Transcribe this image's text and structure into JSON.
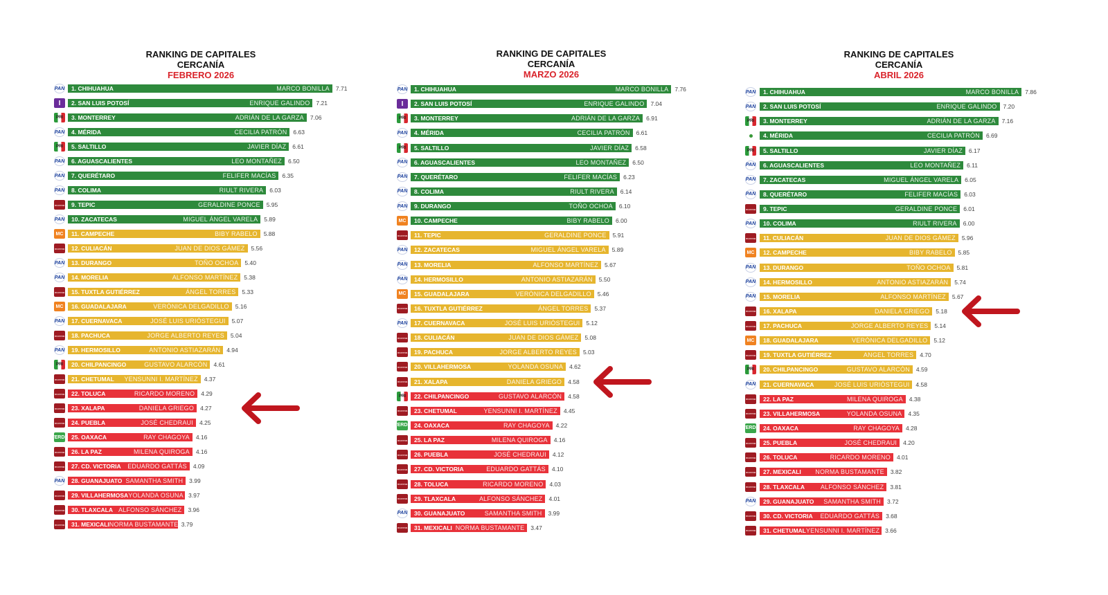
{
  "colors": {
    "green": "#2e8a3c",
    "yellow": "#e6b52e",
    "red": "#e8323a",
    "arrow": "#c0161e"
  },
  "chart_data": [
    {
      "type": "bar",
      "orientation": "horizontal",
      "title": "RANKING DE CAPITALES",
      "subtitle": "CERCANÍA",
      "period": "FEBRERO 2026",
      "xlim": [
        1.0,
        7.8
      ],
      "highlight_rank": 23,
      "rows": [
        [
          1,
          "CHIHUAHUA",
          "MARCO BONILLA",
          7.71,
          "pan"
        ],
        [
          2,
          "SAN LUIS POTOSÍ",
          "ENRIQUE GALINDO",
          7.21,
          "ind"
        ],
        [
          3,
          "MONTERREY",
          "ADRIÁN DE LA GARZA",
          7.06,
          "pri"
        ],
        [
          4,
          "MÉRIDA",
          "CECILIA PATRÓN",
          6.63,
          "pan"
        ],
        [
          5,
          "SALTILLO",
          "JAVIER DÍAZ",
          6.61,
          "pri"
        ],
        [
          6,
          "AGUASCALIENTES",
          "LEO MONTAÑEZ",
          6.5,
          "pan"
        ],
        [
          7,
          "QUERÉTARO",
          "FELIFER MACÍAS",
          6.35,
          "pan"
        ],
        [
          8,
          "COLIMA",
          "RIULT RIVERA",
          6.03,
          "pan"
        ],
        [
          9,
          "TEPIC",
          "GERALDINE PONCE",
          5.95,
          "morena"
        ],
        [
          10,
          "ZACATECAS",
          "MIGUEL ÁNGEL VARELA",
          5.89,
          "pan"
        ],
        [
          11,
          "CAMPECHE",
          "BIBY RABELO",
          5.88,
          "mc"
        ],
        [
          12,
          "CULIACÁN",
          "JUAN DE DIOS GÁMEZ",
          5.56,
          "morena"
        ],
        [
          13,
          "DURANGO",
          "TOÑO OCHOA",
          5.4,
          "pan"
        ],
        [
          14,
          "MORELIA",
          "ALFONSO MARTÍNEZ",
          5.38,
          "pan"
        ],
        [
          15,
          "TUXTLA GUTIÉRREZ",
          "ÁNGEL TORRES",
          5.33,
          "morena"
        ],
        [
          16,
          "GUADALAJARA",
          "VERÓNICA DELGADILLO",
          5.16,
          "mc"
        ],
        [
          17,
          "CUERNAVACA",
          "JOSÉ LUIS URIÓSTEGUI",
          5.07,
          "pan"
        ],
        [
          18,
          "PACHUCA",
          "JORGE ALBERTO REYES",
          5.04,
          "morena"
        ],
        [
          19,
          "HERMOSILLO",
          "ANTONIO ASTIAZARÁN",
          4.94,
          "pan"
        ],
        [
          20,
          "CHILPANCINGO",
          "GUSTAVO ALARCÓN",
          4.61,
          "pri"
        ],
        [
          21,
          "CHETUMAL",
          "YENSUNNI I. MARTÍNEZ",
          4.37,
          "morena"
        ],
        [
          22,
          "TOLUCA",
          "RICARDO MORENO",
          4.29,
          "morena"
        ],
        [
          23,
          "XALAPA",
          "DANIELA GRIEGO",
          4.27,
          "morena"
        ],
        [
          24,
          "PUEBLA",
          "JOSÉ CHEDRAUI",
          4.25,
          "morena"
        ],
        [
          25,
          "OAXACA",
          "RAY CHAGOYA",
          4.16,
          "verde"
        ],
        [
          26,
          "LA PAZ",
          "MILENA QUIROGA",
          4.16,
          "morena"
        ],
        [
          27,
          "CD. VICTORIA",
          "EDUARDO GATTÁS",
          4.09,
          "morena"
        ],
        [
          28,
          "GUANAJUATO",
          "SAMANTHA SMITH",
          3.99,
          "pan"
        ],
        [
          29,
          "VILLAHERMOSA",
          "YOLANDA OSUNA",
          3.97,
          "morena"
        ],
        [
          30,
          "TLAXCALA",
          "ALFONSO SÁNCHEZ",
          3.96,
          "morena"
        ],
        [
          31,
          "MEXICALI",
          "NORMA BUSTAMANTE",
          3.79,
          "morena"
        ]
      ]
    },
    {
      "type": "bar",
      "orientation": "horizontal",
      "title": "RANKING DE CAPITALES",
      "subtitle": "CERCANÍA",
      "period": "MARZO 2026",
      "xlim": [
        0,
        8
      ],
      "highlight_rank": 21,
      "rows": [
        [
          1,
          "CHIHUAHUA",
          "MARCO BONILLA",
          7.76,
          "pan"
        ],
        [
          2,
          "SAN LUIS POTOSÍ",
          "ENRIQUE GALINDO",
          7.04,
          "ind"
        ],
        [
          3,
          "MONTERREY",
          "ADRIÁN DE LA GARZA",
          6.91,
          "pri"
        ],
        [
          4,
          "MÉRIDA",
          "CECILIA PATRÓN",
          6.61,
          "pan"
        ],
        [
          5,
          "SALTILLO",
          "JAVIER DÍAZ",
          6.58,
          "pri"
        ],
        [
          6,
          "AGUASCALIENTES",
          "LEO MONTAÑEZ",
          6.5,
          "pan"
        ],
        [
          7,
          "QUERÉTARO",
          "FELIFER MACÍAS",
          6.23,
          "pan"
        ],
        [
          8,
          "COLIMA",
          "RIULT RIVERA",
          6.14,
          "pan"
        ],
        [
          9,
          "DURANGO",
          "TOÑO OCHOA",
          6.1,
          "pan"
        ],
        [
          10,
          "CAMPECHE",
          "BIBY RABELO",
          6.0,
          "mc"
        ],
        [
          11,
          "TEPIC",
          "GERALDINE PONCE",
          5.91,
          "morena"
        ],
        [
          12,
          "ZACATECAS",
          "MIGUEL ÁNGEL VARELA",
          5.89,
          "pan"
        ],
        [
          13,
          "MORELIA",
          "ALFONSO MARTÍNEZ",
          5.67,
          "pan"
        ],
        [
          14,
          "HERMOSILLO",
          "ANTONIO ASTIAZARÁN",
          5.5,
          "pan"
        ],
        [
          15,
          "GUADALAJARA",
          "VERÓNICA DELGADILLO",
          5.46,
          "mc"
        ],
        [
          16,
          "TUXTLA GUTIÉRREZ",
          "ÁNGEL TORRES",
          5.37,
          "morena"
        ],
        [
          17,
          "CUERNAVACA",
          "JOSÉ LUIS URIÓSTEGUI",
          5.12,
          "pan"
        ],
        [
          18,
          "CULIACÁN",
          "JUAN DE DIOS GÁMEZ",
          5.08,
          "morena"
        ],
        [
          19,
          "PACHUCA",
          "JORGE ALBERTO REYES",
          5.03,
          "morena"
        ],
        [
          20,
          "VILLAHERMOSA",
          "YOLANDA OSUNA",
          4.62,
          "morena"
        ],
        [
          21,
          "XALAPA",
          "DANIELA GRIEGO",
          4.58,
          "morena"
        ],
        [
          22,
          "CHILPANCINGO",
          "GUSTAVO ALARCÓN",
          4.58,
          "pri"
        ],
        [
          23,
          "CHETUMAL",
          "YENSUNNI I. MARTÍNEZ",
          4.45,
          "morena"
        ],
        [
          24,
          "OAXACA",
          "RAY CHAGOYA",
          4.22,
          "verde"
        ],
        [
          25,
          "LA PAZ",
          "MILENA QUIROGA",
          4.16,
          "morena"
        ],
        [
          26,
          "PUEBLA",
          "JOSÉ CHEDRAUI",
          4.12,
          "morena"
        ],
        [
          27,
          "CD. VICTORIA",
          "EDUARDO GATTÁS",
          4.1,
          "morena"
        ],
        [
          28,
          "TOLUCA",
          "RICARDO MORENO",
          4.03,
          "morena"
        ],
        [
          29,
          "TLAXCALA",
          "ALFONSO SÁNCHEZ",
          4.01,
          "morena"
        ],
        [
          30,
          "GUANAJUATO",
          "SAMANTHA SMITH",
          3.99,
          "pan"
        ],
        [
          31,
          "MEXICALI",
          "NORMA BUSTAMANTE",
          3.47,
          "morena"
        ]
      ]
    },
    {
      "type": "bar",
      "orientation": "horizontal",
      "title": "RANKING DE CAPITALES",
      "subtitle": "CERCANÍA",
      "period": "ABRIL 2026",
      "xlim": [
        0,
        8
      ],
      "highlight_rank": 16,
      "rows": [
        [
          1,
          "CHIHUAHUA",
          "MARCO BONILLA",
          7.86,
          "pan"
        ],
        [
          2,
          "SAN LUIS POTOSÍ",
          "ENRIQUE GALINDO",
          7.2,
          "pan"
        ],
        [
          3,
          "MONTERREY",
          "ADRIÁN DE LA GARZA",
          7.16,
          "pri"
        ],
        [
          4,
          "MÉRIDA",
          "CECILIA PATRÓN",
          6.69,
          "dot"
        ],
        [
          5,
          "SALTILLO",
          "JAVIER DÍAZ",
          6.17,
          "pri"
        ],
        [
          6,
          "AGUASCALIENTES",
          "LEO MONTAÑEZ",
          6.11,
          "pan"
        ],
        [
          7,
          "ZACATECAS",
          "MIGUEL ÁNGEL VARELA",
          6.05,
          "pan"
        ],
        [
          8,
          "QUERÉTARO",
          "FELIFER MACÍAS",
          6.03,
          "pan"
        ],
        [
          9,
          "TEPIC",
          "GERALDINE PONCE",
          6.01,
          "morena"
        ],
        [
          10,
          "COLIMA",
          "RIULT RIVERA",
          6.0,
          "pan"
        ],
        [
          11,
          "CULIACÁN",
          "JUAN DE DIOS GÁMEZ",
          5.96,
          "morena"
        ],
        [
          12,
          "CAMPECHE",
          "BIBY RABELO",
          5.85,
          "mc"
        ],
        [
          13,
          "DURANGO",
          "TOÑO OCHOA",
          5.81,
          "pan"
        ],
        [
          14,
          "HERMOSILLO",
          "ANTONIO ASTIAZARÁN",
          5.74,
          "pan"
        ],
        [
          15,
          "MORELIA",
          "ALFONSO MARTÍNEZ",
          5.67,
          "pan"
        ],
        [
          16,
          "XALAPA",
          "DANIELA GRIEGO",
          5.18,
          "morena"
        ],
        [
          17,
          "PACHUCA",
          "JORGE ALBERTO REYES",
          5.14,
          "morena"
        ],
        [
          18,
          "GUADALAJARA",
          "VERÓNICA DELGADILLO",
          5.12,
          "mc"
        ],
        [
          19,
          "TUXTLA GUTIÉRREZ",
          "ANGEL TORRES",
          4.7,
          "morena"
        ],
        [
          20,
          "CHILPANCINGO",
          "GUSTAVO ALARCÓN",
          4.59,
          "pri"
        ],
        [
          21,
          "CUERNAVACA",
          "JOSÉ LUIS URIÓSTEGUI",
          4.58,
          "pan"
        ],
        [
          22,
          "LA PAZ",
          "MILENA QUIROGA",
          4.38,
          "morena"
        ],
        [
          23,
          "VILLAHERMOSA",
          "YOLANDA OSUNA",
          4.35,
          "morena"
        ],
        [
          24,
          "OAXACA",
          "RAY CHAGOYA",
          4.28,
          "verde"
        ],
        [
          25,
          "PUEBLA",
          "JOSÉ CHEDRAUI",
          4.2,
          "morena"
        ],
        [
          26,
          "TOLUCA",
          "RICARDO MORENO",
          4.01,
          "morena"
        ],
        [
          27,
          "MEXICALI",
          "NORMA BUSTAMANTE",
          3.82,
          "morena"
        ],
        [
          28,
          "TLAXCALA",
          "ALFONSO SÁNCHEZ",
          3.81,
          "morena"
        ],
        [
          29,
          "GUANAJUATO",
          "SAMANTHA SMITH",
          3.72,
          "pan"
        ],
        [
          30,
          "CD. VICTORIA",
          "EDUARDO GATTÁS",
          3.68,
          "morena"
        ],
        [
          31,
          "CHETUMAL",
          "YENSUNNI I. MARTÍNEZ",
          3.66,
          "morena"
        ]
      ]
    }
  ],
  "party_icons": {
    "pan": "PAN",
    "ind": "I",
    "pri": "PRI",
    "morena": "morena",
    "mc": "MC",
    "verde": "VERDE",
    "dot": ""
  }
}
